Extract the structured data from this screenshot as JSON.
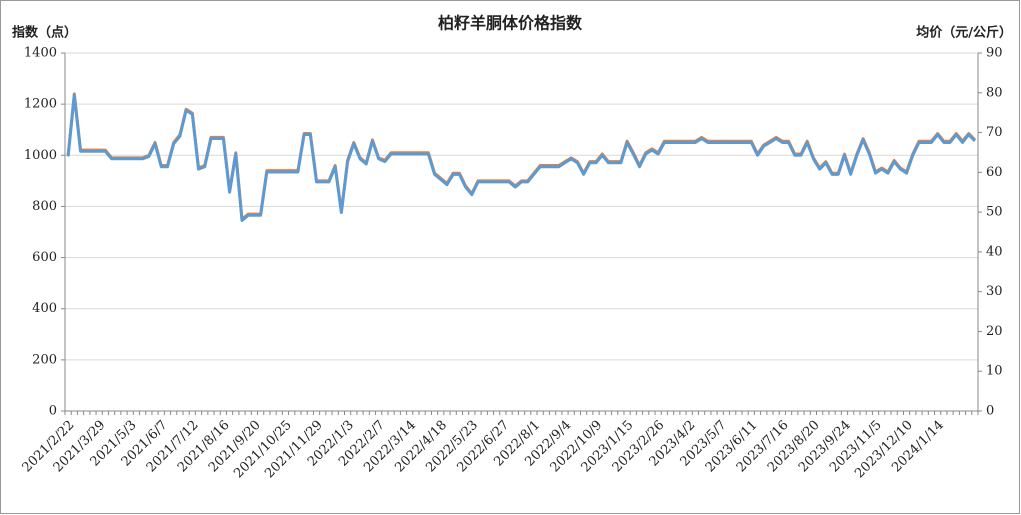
{
  "chart_data": {
    "type": "line",
    "title": "柏籽羊胴体价格指数",
    "y_label": "指数（点）",
    "y2_label": "均价（元/公斤）",
    "categories": [
      "2021/2/22",
      null,
      null,
      null,
      null,
      "2021/3/29",
      null,
      null,
      null,
      null,
      "2021/5/3",
      null,
      null,
      null,
      null,
      "2021/6/7",
      null,
      null,
      null,
      null,
      "2021/7/12",
      null,
      null,
      null,
      null,
      "2021/8/16",
      null,
      null,
      null,
      null,
      "2021/9/20",
      null,
      null,
      null,
      null,
      "2021/10/25",
      null,
      null,
      null,
      null,
      "2021/11/29",
      null,
      null,
      null,
      null,
      "2022/1/3",
      null,
      null,
      null,
      null,
      "2022/2/7",
      null,
      null,
      null,
      null,
      "2022/3/14",
      null,
      null,
      null,
      null,
      "2022/4/18",
      null,
      null,
      null,
      null,
      "2022/5/23",
      null,
      null,
      null,
      null,
      "2022/6/27",
      null,
      null,
      null,
      null,
      "2022/8/1",
      null,
      null,
      null,
      null,
      "2022/9/4",
      null,
      null,
      null,
      null,
      "2022/10/9",
      null,
      null,
      null,
      null,
      "2023/1/15",
      null,
      null,
      null,
      null,
      "2023/2/26",
      null,
      null,
      null,
      null,
      "2023/4/2",
      null,
      null,
      null,
      null,
      "2023/5/7",
      null,
      null,
      null,
      null,
      "2023/6/11",
      null,
      null,
      null,
      null,
      "2023/7/16",
      null,
      null,
      null,
      null,
      "2023/8/20",
      null,
      null,
      null,
      null,
      "2023/9/24",
      null,
      null,
      null,
      null,
      "2023/11/5",
      null,
      null,
      null,
      null,
      "2023/12/10",
      null,
      null,
      null,
      null,
      "2024/1/14",
      null,
      null,
      null,
      null,
      null,
      null
    ],
    "series": [
      {
        "color": "#ed7d31",
        "values": [
          1000,
          1240,
          1020,
          1020,
          1020,
          1020,
          1020,
          990,
          990,
          990,
          990,
          990,
          990,
          1000,
          1050,
          960,
          960,
          1050,
          1080,
          1180,
          1165,
          950,
          960,
          1070,
          1070,
          1070,
          860,
          1010,
          750,
          770,
          770,
          770,
          940,
          940,
          940,
          940,
          940,
          940,
          1085,
          1085,
          900,
          900,
          900,
          960,
          780,
          980,
          1050,
          990,
          970,
          1060,
          990,
          980,
          1010,
          1010,
          1010,
          1010,
          1010,
          1010,
          1010,
          930,
          910,
          890,
          930,
          930,
          880,
          850,
          900,
          900,
          900,
          900,
          900,
          900,
          880,
          900,
          900,
          930,
          960,
          960,
          960,
          960,
          975,
          990,
          975,
          930,
          975,
          975,
          1005,
          975,
          975,
          975,
          1055,
          1010,
          960,
          1010,
          1025,
          1010,
          1055,
          1055,
          1055,
          1055,
          1055,
          1055,
          1070,
          1055,
          1055,
          1055,
          1055,
          1055,
          1055,
          1055,
          1055,
          1005,
          1040,
          1055,
          1070,
          1055,
          1055,
          1005,
          1005,
          1055,
          990,
          950,
          975,
          930,
          930,
          1005,
          930,
          1005,
          1065,
          1010,
          935,
          950,
          935,
          980,
          950,
          935,
          1005,
          1055,
          1055,
          1055,
          1085,
          1055,
          1055,
          1085,
          1055,
          1085,
          1060
        ]
      },
      {
        "color": "#5b9bd5",
        "axis": "y2",
        "values": [
          64.0,
          79.4,
          65.3,
          65.3,
          65.3,
          65.3,
          65.3,
          63.4,
          63.4,
          63.4,
          63.4,
          63.4,
          63.4,
          64.0,
          67.2,
          61.4,
          61.4,
          67.2,
          69.1,
          75.6,
          74.6,
          60.8,
          61.4,
          68.5,
          68.5,
          68.5,
          55.0,
          64.6,
          47.9,
          49.2,
          49.2,
          49.2,
          60.1,
          60.1,
          60.1,
          60.1,
          60.1,
          60.1,
          69.5,
          69.5,
          57.6,
          57.6,
          57.6,
          61.4,
          49.9,
          62.7,
          67.2,
          63.4,
          62.1,
          67.9,
          63.4,
          62.7,
          64.6,
          64.6,
          64.6,
          64.6,
          64.6,
          64.6,
          64.6,
          59.5,
          58.2,
          56.9,
          59.5,
          59.5,
          56.3,
          54.4,
          57.6,
          57.6,
          57.6,
          57.6,
          57.6,
          57.6,
          56.3,
          57.6,
          57.6,
          59.5,
          61.4,
          61.4,
          61.4,
          61.4,
          62.4,
          63.4,
          62.4,
          59.5,
          62.4,
          62.4,
          64.3,
          62.4,
          62.4,
          62.4,
          67.5,
          64.6,
          61.4,
          64.6,
          65.6,
          64.6,
          67.5,
          67.5,
          67.5,
          67.5,
          67.5,
          67.5,
          68.5,
          67.5,
          67.5,
          67.5,
          67.5,
          67.5,
          67.5,
          67.5,
          67.5,
          64.3,
          66.6,
          67.5,
          68.5,
          67.5,
          67.5,
          64.3,
          64.3,
          67.5,
          63.4,
          60.8,
          62.4,
          59.5,
          59.5,
          64.3,
          59.5,
          64.3,
          68.2,
          64.6,
          59.8,
          60.8,
          59.8,
          62.7,
          60.8,
          59.8,
          64.3,
          67.5,
          67.5,
          67.5,
          69.5,
          67.5,
          67.5,
          69.5,
          67.5,
          69.5,
          67.9
        ]
      }
    ],
    "ylim": [
      0,
      1400
    ],
    "yticks": [
      0,
      200,
      400,
      600,
      800,
      1000,
      1200,
      1400
    ],
    "y2lim": [
      0,
      90
    ],
    "y2ticks": [
      0,
      10,
      20,
      30,
      40,
      50,
      60,
      70,
      80,
      90
    ],
    "grid": true
  }
}
